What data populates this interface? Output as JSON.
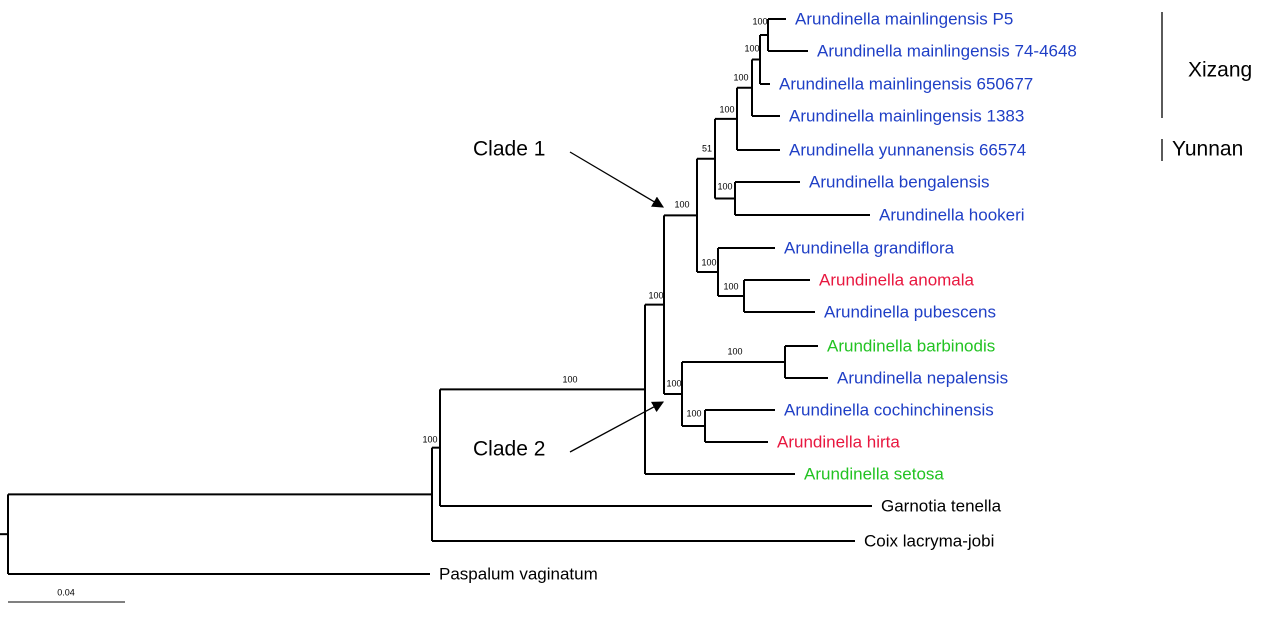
{
  "tips": [
    {
      "label": "Arundinella mainlingensis P5",
      "color": "#1f3fc6"
    },
    {
      "label": "Arundinella mainlingensis 74-4648",
      "color": "#1f3fc6"
    },
    {
      "label": "Arundinella mainlingensis 650677",
      "color": "#1f3fc6"
    },
    {
      "label": "Arundinella mainlingensis 1383",
      "color": "#1f3fc6"
    },
    {
      "label": "Arundinella yunnanensis 66574",
      "color": "#1f3fc6"
    },
    {
      "label": "Arundinella bengalensis",
      "color": "#1f3fc6"
    },
    {
      "label": "Arundinella hookeri",
      "color": "#1f3fc6"
    },
    {
      "label": "Arundinella grandiflora",
      "color": "#1f3fc6"
    },
    {
      "label": "Arundinella anomala",
      "color": "#e8173f"
    },
    {
      "label": "Arundinella pubescens",
      "color": "#1f3fc6"
    },
    {
      "label": "Arundinella barbinodis",
      "color": "#22c322"
    },
    {
      "label": "Arundinella nepalensis",
      "color": "#1f3fc6"
    },
    {
      "label": "Arundinella cochinchinensis",
      "color": "#1f3fc6"
    },
    {
      "label": "Arundinella hirta",
      "color": "#e8173f"
    },
    {
      "label": "Arundinella setosa",
      "color": "#22c322"
    },
    {
      "label": "Garnotia tenella",
      "color": "#000000"
    },
    {
      "label": "Coix lacryma-jobi",
      "color": "#000000"
    },
    {
      "label": "Paspalum vaginatum",
      "color": "#000000"
    }
  ],
  "supports": [
    100,
    100,
    100,
    100,
    100,
    51,
    100,
    100,
    100,
    100,
    100,
    100,
    100,
    100,
    100
  ],
  "clades": [
    "Clade 1",
    "Clade 2"
  ],
  "regions": [
    "Xizang",
    "Yunnan"
  ],
  "scale_bar": "0.04"
}
